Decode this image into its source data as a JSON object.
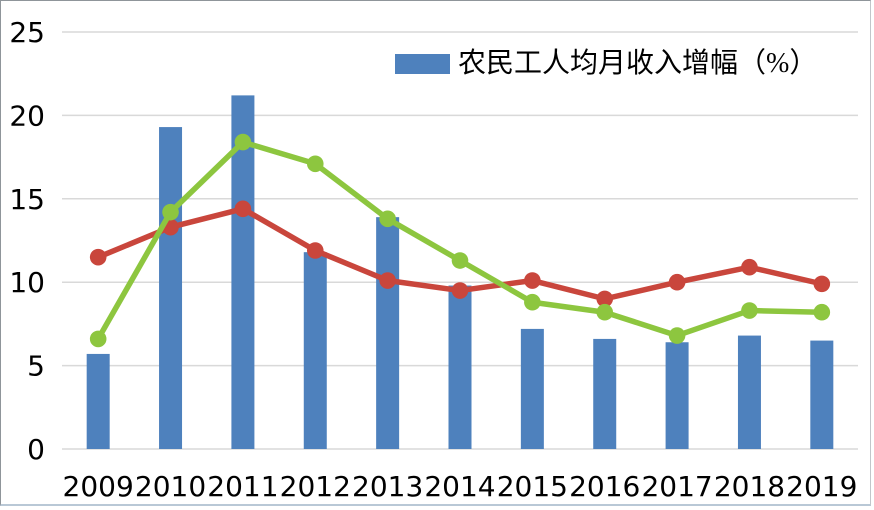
{
  "chart_data": {
    "type": "combo-bar-line",
    "title": "",
    "xlabel": "",
    "ylabel": "",
    "categories": [
      "2009",
      "2010",
      "2011",
      "2012",
      "2013",
      "2014",
      "2015",
      "2016",
      "2017",
      "2018",
      "2019"
    ],
    "series": [
      {
        "name": "农民工人均月收入增幅（%）",
        "type": "bar",
        "color": "#4e81bd",
        "in_legend": true,
        "values": [
          5.7,
          19.3,
          21.2,
          11.8,
          13.9,
          9.8,
          7.2,
          6.6,
          6.4,
          6.8,
          6.5
        ]
      },
      {
        "name": "",
        "type": "line",
        "color": "#c9463c",
        "in_legend": false,
        "values": [
          11.5,
          13.3,
          14.4,
          11.9,
          10.1,
          9.5,
          10.1,
          9.0,
          10.0,
          10.9,
          9.9
        ]
      },
      {
        "name": "",
        "type": "line",
        "color": "#8dc63f",
        "in_legend": false,
        "values": [
          6.6,
          14.2,
          18.4,
          17.1,
          13.8,
          11.3,
          8.8,
          8.2,
          6.8,
          8.3,
          8.2
        ]
      }
    ],
    "ylim": [
      0,
      25
    ],
    "yticks": [
      0,
      5,
      10,
      15,
      20,
      25
    ],
    "grid": true,
    "legend_position": "top-center-right"
  },
  "colors": {
    "gridline": "#d9d9d9",
    "axis_text": "#000000",
    "background": "#ffffff"
  }
}
